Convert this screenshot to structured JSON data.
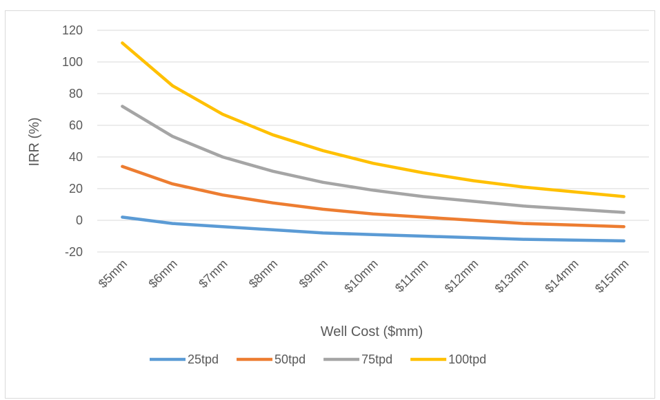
{
  "chart_data": {
    "type": "line",
    "title": "",
    "xlabel": "Well Cost ($mm)",
    "ylabel": "IRR (%)",
    "ylim": [
      -20,
      120
    ],
    "yticks": [
      -20,
      0,
      20,
      40,
      60,
      80,
      100,
      120
    ],
    "grid": "horizontal",
    "legend_position": "bottom",
    "categories": [
      "$5mm",
      "$6mm",
      "$7mm",
      "$8mm",
      "$9mm",
      "$10mm",
      "$11mm",
      "$12mm",
      "$13mm",
      "$14mm",
      "$15mm"
    ],
    "series": [
      {
        "name": "25tpd",
        "color": "#5b9bd5",
        "values": [
          2,
          -2,
          -4,
          -6,
          -8,
          -9,
          -10,
          -11,
          -12,
          -12.5,
          -13
        ]
      },
      {
        "name": "50tpd",
        "color": "#ed7d31",
        "values": [
          34,
          23,
          16,
          11,
          7,
          4,
          2,
          0,
          -2,
          -3,
          -4
        ]
      },
      {
        "name": "75tpd",
        "color": "#a5a5a5",
        "values": [
          72,
          53,
          40,
          31,
          24,
          19,
          15,
          12,
          9,
          7,
          5
        ]
      },
      {
        "name": "100tpd",
        "color": "#ffc000",
        "values": [
          112,
          85,
          67,
          54,
          44,
          36,
          30,
          25,
          21,
          18,
          15
        ]
      }
    ]
  }
}
